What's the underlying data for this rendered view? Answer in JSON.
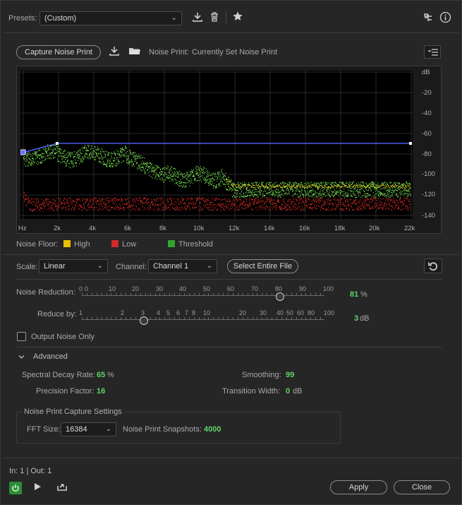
{
  "presets": {
    "label": "Presets:",
    "value": "(Custom)"
  },
  "noise_print": {
    "capture_label": "Capture Noise Print",
    "status_label": "Noise Print:",
    "status_value": "Currently Set Noise Print"
  },
  "graph": {
    "y_unit": "dB",
    "y_ticks": [
      "-20",
      "-40",
      "-60",
      "-80",
      "-100",
      "-120",
      "-140"
    ],
    "x_ticks": [
      "Hz",
      "2k",
      "4k",
      "6k",
      "8k",
      "10k",
      "12k",
      "14k",
      "16k",
      "18k",
      "20k",
      "22k"
    ]
  },
  "legend": {
    "title": "Noise Floor:",
    "items": [
      {
        "label": "High",
        "color": "#e8c000"
      },
      {
        "label": "Low",
        "color": "#d02a2a"
      },
      {
        "label": "Threshold",
        "color": "#2fa52f"
      }
    ]
  },
  "scale": {
    "label": "Scale:",
    "value": "Linear"
  },
  "channel": {
    "label": "Channel:",
    "value": "Channel 1"
  },
  "select_file_label": "Select Entire File",
  "noise_reduction": {
    "label": "Noise Reduction:",
    "value": "81",
    "unit": "%",
    "ticks": [
      "0",
      "0",
      "10",
      "20",
      "30",
      "40",
      "50",
      "60",
      "70",
      "80",
      "90",
      "100"
    ],
    "level": 0.81
  },
  "reduce_by": {
    "label": "Reduce by:",
    "value": "3",
    "unit": "dB",
    "ticks": [
      "1",
      "2",
      "3",
      "4",
      "5",
      "6",
      "7",
      "8",
      "10",
      "20",
      "30",
      "40",
      "50",
      "60",
      "80",
      "100"
    ],
    "level": 0.3
  },
  "output_noise_only": {
    "label": "Output Noise Only",
    "checked": false
  },
  "advanced": {
    "label": "Advanced",
    "spectral_decay": {
      "label": "Spectral Decay Rate:",
      "value": "65",
      "unit": "%"
    },
    "smoothing": {
      "label": "Smoothing:",
      "value": "99"
    },
    "precision": {
      "label": "Precision Factor:",
      "value": "16"
    },
    "transition": {
      "label": "Transition Width:",
      "value": "0",
      "unit": "dB"
    }
  },
  "capture_settings": {
    "title": "Noise Print Capture Settings",
    "fft_label": "FFT Size:",
    "fft_value": "16384",
    "snapshots_label": "Noise Print Snapshots:",
    "snapshots_value": "4000"
  },
  "io_status": "In: 1 | Out: 1",
  "apply_label": "Apply",
  "close_label": "Close",
  "colors": {
    "accent_green": "#5fd36a",
    "threshold_line": "#4c5cf0"
  }
}
